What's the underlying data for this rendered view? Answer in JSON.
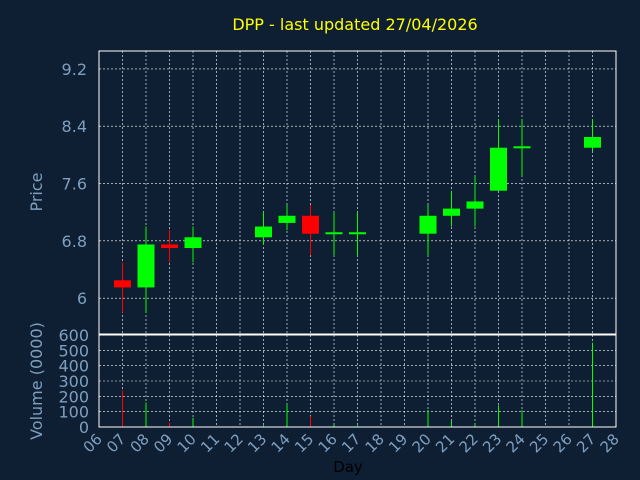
{
  "chart_data": {
    "type": "candlestick",
    "title": "DPP - last updated 27/04/2026",
    "xlabel": "Day",
    "price_ylabel": "Price",
    "volume_ylabel": "Volume (0000)",
    "x_ticks": [
      "06",
      "07",
      "08",
      "09",
      "10",
      "11",
      "12",
      "13",
      "14",
      "15",
      "16",
      "17",
      "18",
      "19",
      "20",
      "21",
      "22",
      "23",
      "24",
      "25",
      "26",
      "27",
      "28"
    ],
    "price_ticks": [
      "6",
      "6.8",
      "7.6",
      "8.4",
      "9.2"
    ],
    "price_tick_values": [
      6.0,
      6.8,
      7.6,
      8.4,
      9.2
    ],
    "price_ylim": [
      5.5,
      9.45
    ],
    "volume_ticks": [
      "0",
      "100",
      "200",
      "300",
      "400",
      "500",
      "600"
    ],
    "volume_tick_values": [
      0,
      100,
      200,
      300,
      400,
      500,
      600
    ],
    "volume_ylim": [
      0,
      600
    ],
    "x_range": [
      6,
      28
    ],
    "grid": true,
    "colors": {
      "up": "#00ff00",
      "down": "#ff0000",
      "background": "#0f1f33",
      "title": "#ffff00",
      "axis": "#7f9fbf",
      "grid": "#ffffff"
    },
    "candles": [
      {
        "day": 7,
        "open": 6.25,
        "close": 6.15,
        "high": 6.5,
        "low": 5.8,
        "volume": 240
      },
      {
        "day": 8,
        "open": 6.15,
        "close": 6.75,
        "high": 7.0,
        "low": 5.8,
        "volume": 160
      },
      {
        "day": 9,
        "open": 6.75,
        "close": 6.7,
        "high": 6.95,
        "low": 6.5,
        "volume": 30
      },
      {
        "day": 10,
        "open": 6.7,
        "close": 6.85,
        "high": 7.0,
        "low": 6.5,
        "volume": 60
      },
      {
        "day": 13,
        "open": 6.85,
        "close": 7.0,
        "high": 7.2,
        "low": 6.75,
        "volume": 10
      },
      {
        "day": 14,
        "open": 7.05,
        "close": 7.15,
        "high": 7.3,
        "low": 6.95,
        "volume": 150
      },
      {
        "day": 15,
        "open": 7.15,
        "close": 6.9,
        "high": 7.3,
        "low": 6.6,
        "volume": 70
      },
      {
        "day": 16,
        "open": 6.9,
        "close": 6.92,
        "high": 7.2,
        "low": 6.6,
        "volume": 15
      },
      {
        "day": 17,
        "open": 6.9,
        "close": 6.92,
        "high": 7.2,
        "low": 6.6,
        "volume": 10
      },
      {
        "day": 20,
        "open": 6.9,
        "close": 7.15,
        "high": 7.3,
        "low": 6.6,
        "volume": 110
      },
      {
        "day": 21,
        "open": 7.15,
        "close": 7.25,
        "high": 7.5,
        "low": 7.0,
        "volume": 40
      },
      {
        "day": 22,
        "open": 7.25,
        "close": 7.35,
        "high": 7.7,
        "low": 7.0,
        "volume": 20
      },
      {
        "day": 23,
        "open": 7.5,
        "close": 8.1,
        "high": 8.5,
        "low": 7.5,
        "volume": 140
      },
      {
        "day": 24,
        "open": 8.1,
        "close": 8.12,
        "high": 8.5,
        "low": 7.7,
        "volume": 110
      },
      {
        "day": 27,
        "open": 8.1,
        "close": 8.25,
        "high": 8.5,
        "low": 8.05,
        "volume": 550
      }
    ]
  }
}
